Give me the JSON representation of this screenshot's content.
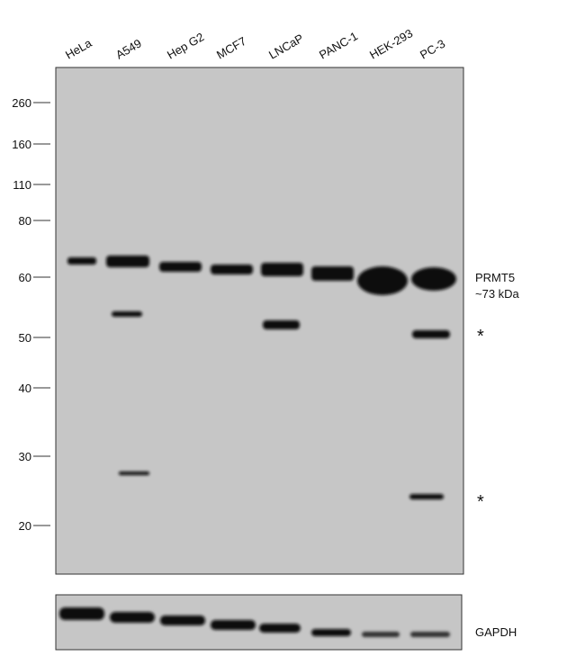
{
  "lanes": [
    "HeLa",
    "A549",
    "Hep G2",
    "MCF7",
    "LNCaP",
    "PANC-1",
    "HEK-293",
    "PC-3"
  ],
  "markers": [
    260,
    160,
    110,
    80,
    60,
    50,
    40,
    30,
    20
  ],
  "annotations": {
    "target": "PRMT5",
    "size": "~73 kDa",
    "nonspecific_1": "*",
    "nonspecific_2": "*",
    "loading_control": "GAPDH"
  }
}
